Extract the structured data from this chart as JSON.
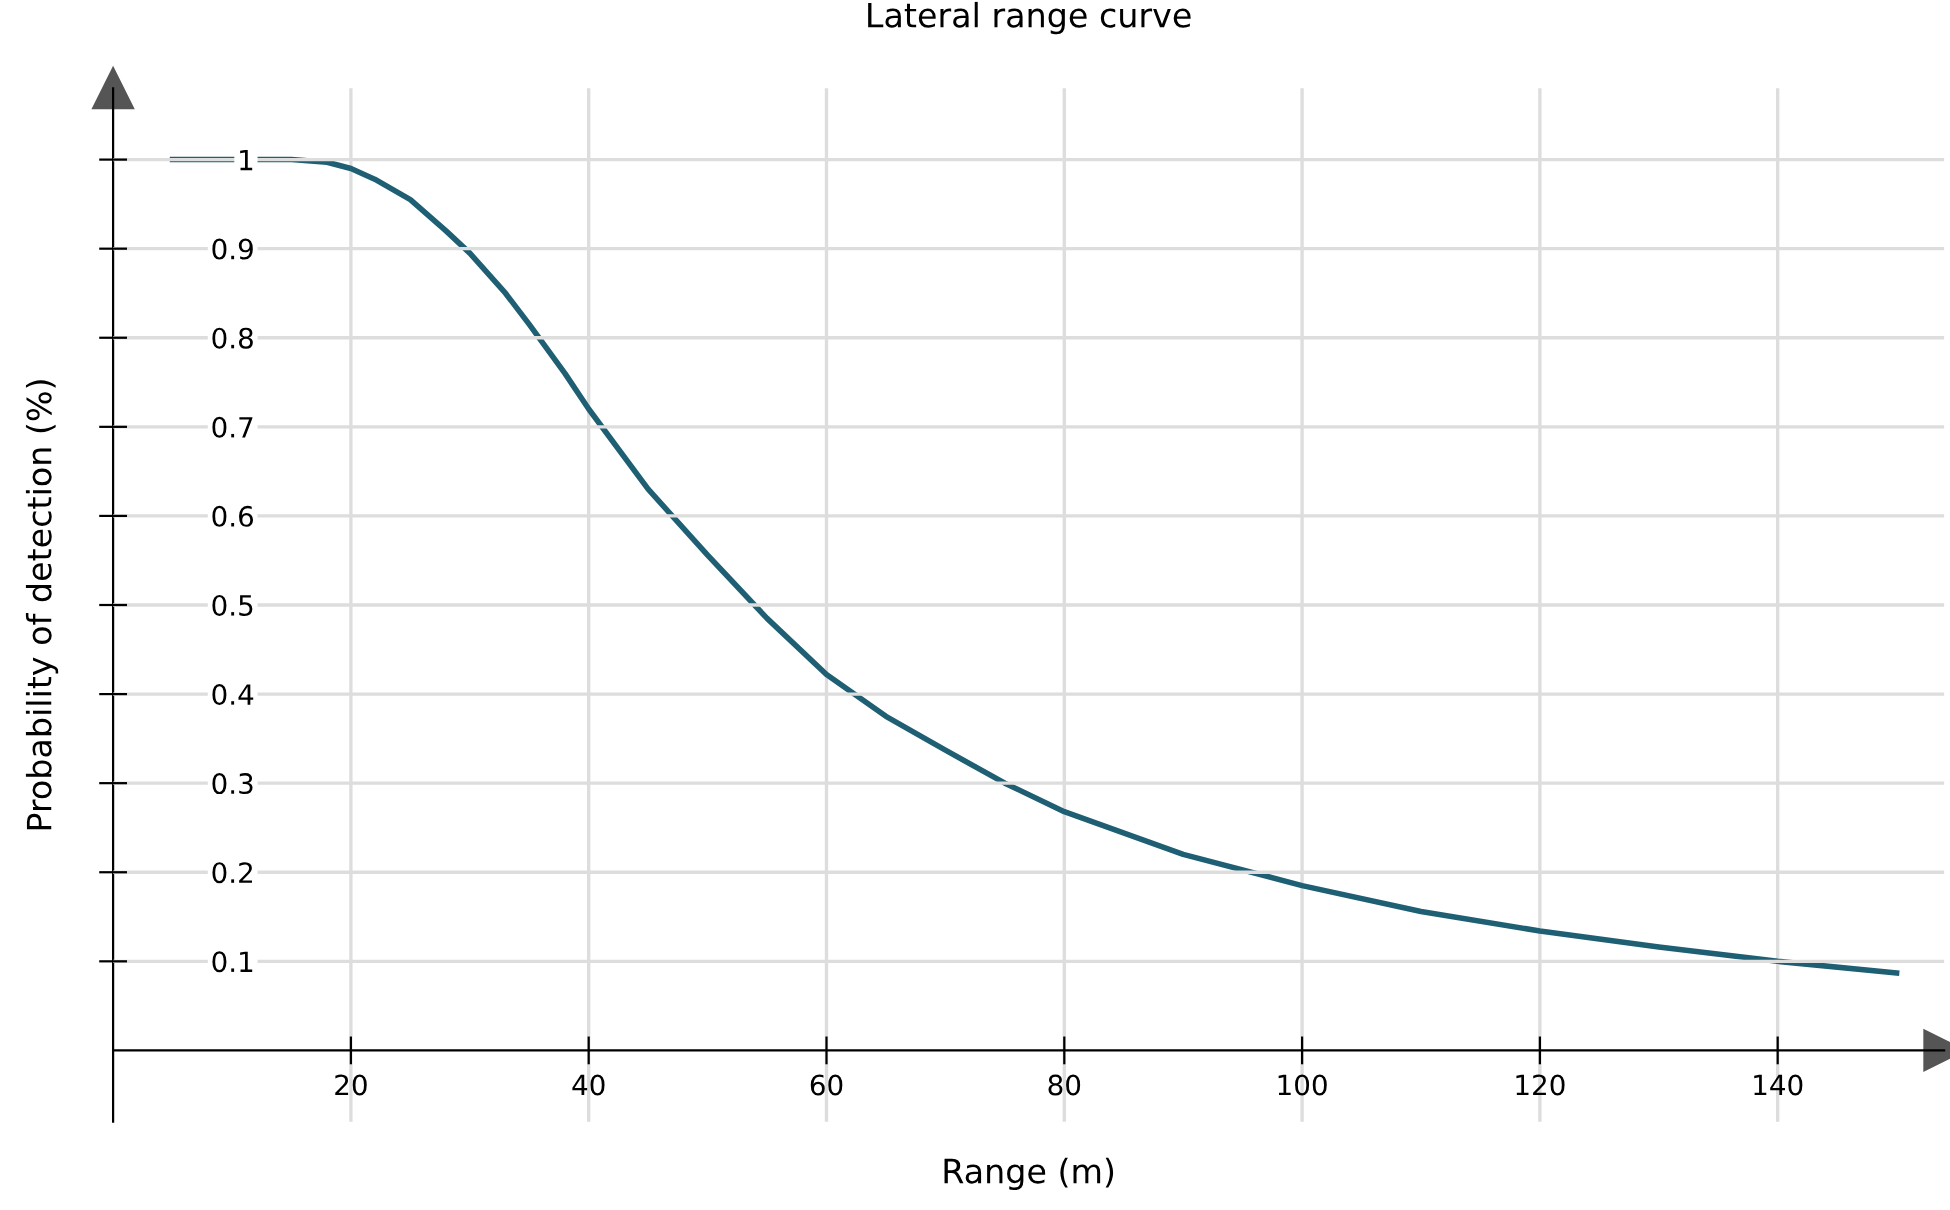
{
  "chart_data": {
    "type": "line",
    "title": "Lateral range curve",
    "xlabel": "Range (m)",
    "ylabel": "Probability of detection (%)",
    "x": [
      5,
      10,
      15,
      18,
      20,
      22,
      25,
      28,
      30,
      33,
      35,
      38,
      40,
      45,
      50,
      55,
      60,
      65,
      70,
      75,
      80,
      90,
      100,
      110,
      120,
      130,
      140,
      150
    ],
    "series": [
      {
        "color": "#1f5f74",
        "values": [
          1,
          1,
          1,
          0.997,
          0.99,
          0.978,
          0.955,
          0.92,
          0.895,
          0.85,
          0.815,
          0.76,
          0.72,
          0.63,
          0.556,
          0.485,
          0.422,
          0.375,
          0.337,
          0.3,
          0.268,
          0.22,
          0.185,
          0.156,
          0.134,
          0.116,
          0.1,
          0.087
        ]
      }
    ],
    "xlim": [
      0,
      154
    ],
    "ylim": [
      -0.08,
      1.08
    ],
    "xticks": [
      20,
      40,
      60,
      80,
      100,
      120,
      140
    ],
    "yticks": [
      0.1,
      0.2,
      0.3,
      0.4,
      0.5,
      0.6,
      0.7,
      0.8,
      0.9,
      1
    ],
    "grid": true,
    "marker": "none",
    "line_style": "solid"
  }
}
